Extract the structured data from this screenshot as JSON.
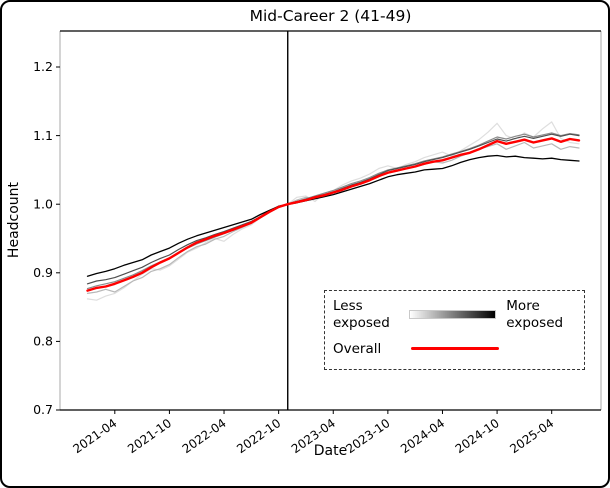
{
  "window": {
    "background": "#ffffff",
    "border_color": "#000000"
  },
  "chart_data": {
    "type": "line",
    "title": "Mid-Career 2 (41-49)",
    "xlabel": "Date",
    "ylabel": "Headcount",
    "ylim": [
      0.7,
      1.2525
    ],
    "y_ticks": [
      0.7,
      0.8,
      0.9,
      1.0,
      1.1,
      1.2
    ],
    "x_tick_labels": [
      "2021-04",
      "2021-10",
      "2022-04",
      "2022-10",
      "2023-04",
      "2023-10",
      "2024-04",
      "2024-10",
      "2025-04"
    ],
    "grid": false,
    "legend_position": "lower right, dashed frame",
    "vline_month": "2022-11",
    "normalization": "all series equal 1.0 at vertical line",
    "x_months": [
      "2021-01",
      "2021-02",
      "2021-03",
      "2021-04",
      "2021-05",
      "2021-06",
      "2021-07",
      "2021-08",
      "2021-09",
      "2021-10",
      "2021-11",
      "2021-12",
      "2022-01",
      "2022-02",
      "2022-03",
      "2022-04",
      "2022-05",
      "2022-06",
      "2022-07",
      "2022-08",
      "2022-09",
      "2022-10",
      "2022-11",
      "2022-12",
      "2023-01",
      "2023-02",
      "2023-03",
      "2023-04",
      "2023-05",
      "2023-06",
      "2023-07",
      "2023-08",
      "2023-09",
      "2023-10",
      "2023-11",
      "2023-12",
      "2024-01",
      "2024-02",
      "2024-03",
      "2024-04",
      "2024-05",
      "2024-06",
      "2024-07",
      "2024-08",
      "2024-09",
      "2024-10",
      "2024-11",
      "2024-12",
      "2025-01",
      "2025-02",
      "2025-03",
      "2025-04",
      "2025-05",
      "2025-06",
      "2025-07"
    ],
    "series": [
      {
        "name": "quintile-1-least-exposed",
        "color": "#dedede",
        "width": 1.2,
        "values": [
          0.862,
          0.86,
          0.866,
          0.87,
          0.878,
          0.888,
          0.898,
          0.906,
          0.904,
          0.91,
          0.92,
          0.93,
          0.936,
          0.944,
          0.95,
          0.946,
          0.956,
          0.964,
          0.97,
          0.98,
          0.99,
          0.998,
          1.0,
          1.01,
          1.012,
          1.004,
          1.016,
          1.02,
          1.028,
          1.034,
          1.038,
          1.044,
          1.052,
          1.056,
          1.052,
          1.058,
          1.062,
          1.068,
          1.072,
          1.076,
          1.07,
          1.078,
          1.086,
          1.094,
          1.105,
          1.118,
          1.1,
          1.095,
          1.104,
          1.098,
          1.11,
          1.12,
          1.096,
          1.09,
          1.088
        ]
      },
      {
        "name": "quintile-2",
        "color": "#b8b8b8",
        "width": 1.2,
        "values": [
          0.87,
          0.872,
          0.876,
          0.872,
          0.88,
          0.888,
          0.893,
          0.902,
          0.906,
          0.912,
          0.922,
          0.931,
          0.938,
          0.942,
          0.949,
          0.953,
          0.96,
          0.966,
          0.972,
          0.98,
          0.988,
          0.996,
          1.0,
          1.006,
          1.01,
          1.008,
          1.014,
          1.017,
          1.022,
          1.028,
          1.031,
          1.036,
          1.043,
          1.046,
          1.048,
          1.052,
          1.055,
          1.058,
          1.062,
          1.06,
          1.064,
          1.07,
          1.075,
          1.08,
          1.084,
          1.088,
          1.08,
          1.085,
          1.09,
          1.082,
          1.085,
          1.088,
          1.08,
          1.084,
          1.082
        ]
      },
      {
        "name": "quintile-3",
        "color": "#8a8a8a",
        "width": 1.2,
        "values": [
          0.877,
          0.881,
          0.884,
          0.887,
          0.892,
          0.897,
          0.903,
          0.91,
          0.916,
          0.921,
          0.929,
          0.936,
          0.942,
          0.947,
          0.952,
          0.957,
          0.962,
          0.967,
          0.973,
          0.98,
          0.988,
          0.995,
          1.0,
          1.004,
          1.008,
          1.012,
          1.016,
          1.02,
          1.025,
          1.03,
          1.034,
          1.039,
          1.045,
          1.05,
          1.053,
          1.056,
          1.059,
          1.063,
          1.066,
          1.069,
          1.073,
          1.077,
          1.081,
          1.086,
          1.092,
          1.098,
          1.095,
          1.099,
          1.102,
          1.098,
          1.101,
          1.104,
          1.1,
          1.103,
          1.101
        ]
      },
      {
        "name": "quintile-4",
        "color": "#4f4f4f",
        "width": 1.2,
        "values": [
          0.884,
          0.888,
          0.89,
          0.893,
          0.898,
          0.903,
          0.908,
          0.915,
          0.921,
          0.926,
          0.934,
          0.941,
          0.947,
          0.951,
          0.956,
          0.96,
          0.965,
          0.97,
          0.975,
          0.982,
          0.99,
          0.996,
          1.0,
          1.004,
          1.007,
          1.011,
          1.014,
          1.018,
          1.023,
          1.028,
          1.032,
          1.037,
          1.043,
          1.049,
          1.052,
          1.055,
          1.058,
          1.062,
          1.065,
          1.068,
          1.072,
          1.076,
          1.08,
          1.085,
          1.09,
          1.095,
          1.092,
          1.096,
          1.099,
          1.096,
          1.099,
          1.102,
          1.099,
          1.102,
          1.1
        ]
      },
      {
        "name": "quintile-5-most-exposed",
        "color": "#000000",
        "width": 1.3,
        "values": [
          0.895,
          0.899,
          0.902,
          0.906,
          0.911,
          0.915,
          0.919,
          0.926,
          0.931,
          0.936,
          0.943,
          0.949,
          0.954,
          0.958,
          0.962,
          0.966,
          0.97,
          0.974,
          0.978,
          0.985,
          0.991,
          0.997,
          1.0,
          1.002,
          1.005,
          1.008,
          1.011,
          1.014,
          1.018,
          1.022,
          1.026,
          1.03,
          1.035,
          1.04,
          1.043,
          1.045,
          1.047,
          1.05,
          1.051,
          1.052,
          1.056,
          1.061,
          1.065,
          1.068,
          1.07,
          1.071,
          1.069,
          1.07,
          1.068,
          1.067,
          1.066,
          1.067,
          1.065,
          1.064,
          1.063
        ]
      },
      {
        "name": "overall",
        "color": "#ff0000",
        "width": 2.4,
        "values": [
          0.874,
          0.878,
          0.88,
          0.884,
          0.889,
          0.894,
          0.9,
          0.908,
          0.915,
          0.921,
          0.929,
          0.937,
          0.944,
          0.949,
          0.954,
          0.958,
          0.963,
          0.968,
          0.973,
          0.981,
          0.989,
          0.996,
          1.0,
          1.003,
          1.006,
          1.01,
          1.013,
          1.017,
          1.021,
          1.026,
          1.03,
          1.035,
          1.041,
          1.046,
          1.049,
          1.052,
          1.055,
          1.059,
          1.062,
          1.064,
          1.068,
          1.072,
          1.075,
          1.08,
          1.086,
          1.092,
          1.088,
          1.091,
          1.094,
          1.09,
          1.093,
          1.096,
          1.091,
          1.095,
          1.093
        ]
      }
    ],
    "legend": {
      "less_label": "Less exposed",
      "more_label": "More exposed",
      "overall_label": "Overall",
      "gradient": [
        "#ffffff",
        "#000000"
      ],
      "overall_color": "#ff0000"
    }
  }
}
